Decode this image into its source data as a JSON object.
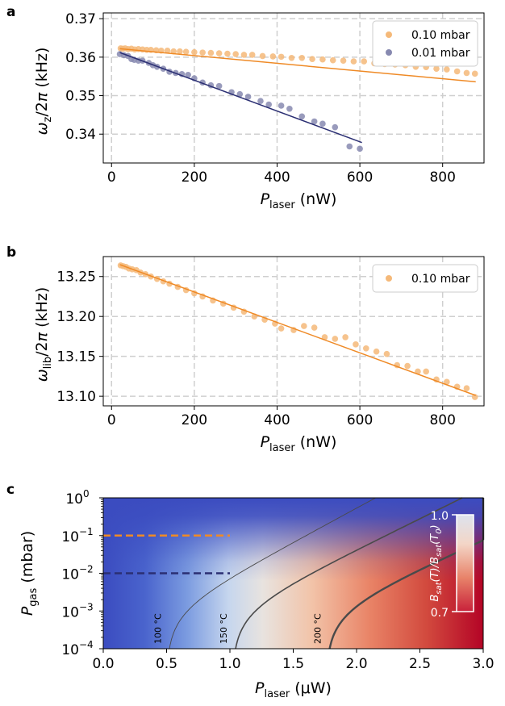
{
  "chart_data": [
    {
      "panel": "a",
      "type": "scatter",
      "xlabel": "P_laser (nW)",
      "ylabel": "ω_z/2π (kHz)",
      "xlim": [
        -20,
        900
      ],
      "ylim": [
        0.3325,
        0.3715
      ],
      "xticks": [
        0,
        200,
        400,
        600,
        800
      ],
      "yticks": [
        0.34,
        0.35,
        0.36,
        0.37
      ],
      "xtick_labels": [
        "0",
        "200",
        "400",
        "600",
        "800"
      ],
      "ytick_labels": [
        "0.34",
        "0.35",
        "0.36",
        "0.37"
      ],
      "grid": true,
      "legend_position": "top-right",
      "series": [
        {
          "name": "0.10 mbar",
          "color": "#f5b979",
          "line_color": "#ef8a26",
          "x": [
            22,
            27,
            33,
            40,
            48,
            56,
            65,
            75,
            85,
            95,
            108,
            120,
            135,
            150,
            165,
            180,
            200,
            220,
            240,
            260,
            280,
            300,
            320,
            340,
            365,
            390,
            410,
            435,
            460,
            485,
            510,
            535,
            560,
            585,
            610,
            635,
            660,
            685,
            710,
            735,
            760,
            785,
            810,
            835,
            858,
            878
          ],
          "y": [
            0.3623,
            0.3622,
            0.3623,
            0.3621,
            0.3622,
            0.362,
            0.3621,
            0.362,
            0.3619,
            0.3619,
            0.3618,
            0.3617,
            0.3617,
            0.3615,
            0.3615,
            0.3614,
            0.3613,
            0.3612,
            0.3611,
            0.361,
            0.3609,
            0.3608,
            0.3606,
            0.3606,
            0.3603,
            0.3602,
            0.3601,
            0.3598,
            0.3598,
            0.3595,
            0.3594,
            0.3592,
            0.3591,
            0.3589,
            0.3589,
            0.3584,
            0.3582,
            0.3581,
            0.3579,
            0.3575,
            0.3574,
            0.357,
            0.3568,
            0.3563,
            0.3559,
            0.3557
          ],
          "fit": [
            [
              20,
              0.3622
            ],
            [
              880,
              0.3536
            ]
          ]
        },
        {
          "name": "0.01 mbar",
          "color": "#8789b0",
          "line_color": "#2b2f73",
          "x": [
            20,
            30,
            40,
            48,
            55,
            65,
            75,
            90,
            100,
            110,
            125,
            140,
            155,
            170,
            185,
            200,
            220,
            240,
            260,
            290,
            310,
            330,
            360,
            380,
            410,
            430,
            460,
            490,
            510,
            540,
            575,
            600
          ],
          "y": [
            0.3608,
            0.3605,
            0.3603,
            0.3595,
            0.3593,
            0.3591,
            0.3591,
            0.3585,
            0.3579,
            0.3575,
            0.357,
            0.3562,
            0.3559,
            0.3556,
            0.3554,
            0.3545,
            0.3534,
            0.3527,
            0.3525,
            0.3509,
            0.3504,
            0.3497,
            0.3486,
            0.3477,
            0.3474,
            0.3466,
            0.3446,
            0.3433,
            0.3427,
            0.3418,
            0.3368,
            0.3362
          ],
          "fit": [
            [
              20,
              0.3612
            ],
            [
              605,
              0.3378
            ]
          ]
        }
      ]
    },
    {
      "panel": "b",
      "type": "scatter",
      "xlabel": "P_laser (nW)",
      "ylabel": "ω_lib/2π (kHz)",
      "xlim": [
        -20,
        900
      ],
      "ylim": [
        13.088,
        13.275
      ],
      "xticks": [
        0,
        200,
        400,
        600,
        800
      ],
      "yticks": [
        13.1,
        13.15,
        13.2,
        13.25
      ],
      "xtick_labels": [
        "0",
        "200",
        "400",
        "600",
        "800"
      ],
      "ytick_labels": [
        "13.10",
        "13.15",
        "13.20",
        "13.25"
      ],
      "grid": true,
      "legend_position": "top-right",
      "series": [
        {
          "name": "0.10 mbar",
          "color": "#f5b979",
          "line_color": "#ef8a26",
          "x": [
            22,
            28,
            35,
            42,
            50,
            60,
            70,
            82,
            95,
            110,
            125,
            140,
            160,
            180,
            200,
            220,
            245,
            270,
            295,
            320,
            345,
            370,
            395,
            410,
            440,
            465,
            490,
            515,
            540,
            565,
            590,
            615,
            640,
            665,
            690,
            715,
            740,
            760,
            785,
            810,
            835,
            858,
            878
          ],
          "y": [
            13.264,
            13.263,
            13.262,
            13.26,
            13.259,
            13.258,
            13.255,
            13.253,
            13.25,
            13.247,
            13.244,
            13.241,
            13.237,
            13.233,
            13.229,
            13.225,
            13.22,
            13.216,
            13.211,
            13.206,
            13.2,
            13.196,
            13.191,
            13.185,
            13.183,
            13.188,
            13.186,
            13.174,
            13.172,
            13.174,
            13.165,
            13.16,
            13.156,
            13.153,
            13.139,
            13.138,
            13.131,
            13.131,
            13.121,
            13.118,
            13.112,
            13.11,
            13.099
          ],
          "fit": [
            [
              20,
              13.265
            ],
            [
              880,
              13.101
            ]
          ]
        }
      ]
    },
    {
      "panel": "c",
      "type": "heatmap",
      "xlabel": "P_laser (μW)",
      "ylabel": "P_gas (mbar)",
      "xlim": [
        0,
        3.0
      ],
      "ylim_log10": [
        -4,
        0
      ],
      "xticks": [
        0,
        0.5,
        1.0,
        1.5,
        2.0,
        2.5,
        3.0
      ],
      "xtick_labels": [
        "0.0",
        "0.5",
        "1.0",
        "1.5",
        "2.0",
        "2.5",
        "3.0"
      ],
      "yticks_log10": [
        0,
        -1,
        -2,
        -3,
        -4
      ],
      "ytick_bases": [
        "10",
        "10",
        "10",
        "10",
        "10"
      ],
      "ytick_exponents": [
        "0",
        "−1",
        "−2",
        "−3",
        "−4"
      ],
      "colorbar_label": "B_sat(T)/B_sat(T_0)",
      "colorbar_ticks": [
        "1.0",
        "0.7"
      ],
      "colormap": [
        "#3b4cc0",
        "#dde3ee",
        "#b40426"
      ],
      "contours": [
        {
          "label": "100 °C",
          "x0": 0.5
        },
        {
          "label": "150 °C",
          "x0": 1.02
        },
        {
          "label": "200 °C",
          "x0": 1.76
        }
      ],
      "dashed_lines": [
        {
          "pressure_mbar": 0.1,
          "x_end": 1.0,
          "color": "#ef8a26"
        },
        {
          "pressure_mbar": 0.01,
          "x_end": 1.0,
          "color": "#2b2f73"
        }
      ]
    }
  ],
  "panel_labels": [
    "a",
    "b",
    "c"
  ]
}
